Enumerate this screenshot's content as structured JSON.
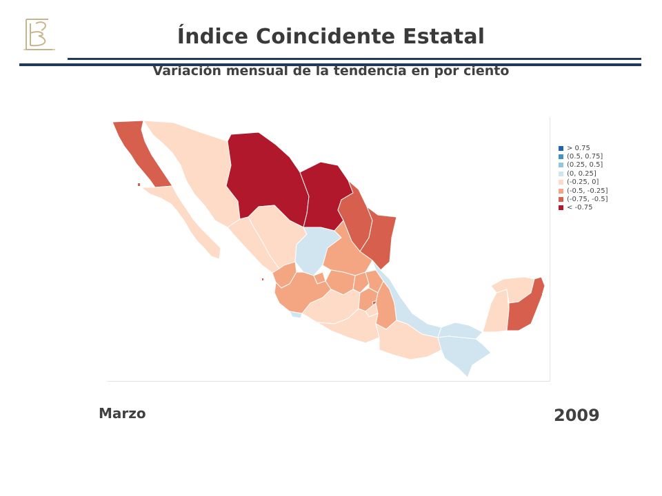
{
  "header": {
    "title": "Índice Coincidente Estatal",
    "subtitle": "Variación mensual de la tendencia en por ciento"
  },
  "footer": {
    "month": "Marzo",
    "year": "2009"
  },
  "legend": {
    "items": [
      {
        "label": "> 0.75",
        "color": "#2166ac"
      },
      {
        "label": "(0.5,  0.75]",
        "color": "#4393c3"
      },
      {
        "label": "(0.25,  0.5]",
        "color": "#92c5de"
      },
      {
        "label": "(0,  0.25]",
        "color": "#d1e5f0"
      },
      {
        "label": "(-0.25,  0]",
        "color": "#fddbc7"
      },
      {
        "label": "(-0.5,  -0.25]",
        "color": "#f4a582"
      },
      {
        "label": "(-0.75,  -0.5]",
        "color": "#d6604d"
      },
      {
        "label": "< -0.75",
        "color": "#b2182b"
      }
    ]
  },
  "colors": {
    "logo": "#c8b48c",
    "rule": "#1f3a5a"
  }
}
